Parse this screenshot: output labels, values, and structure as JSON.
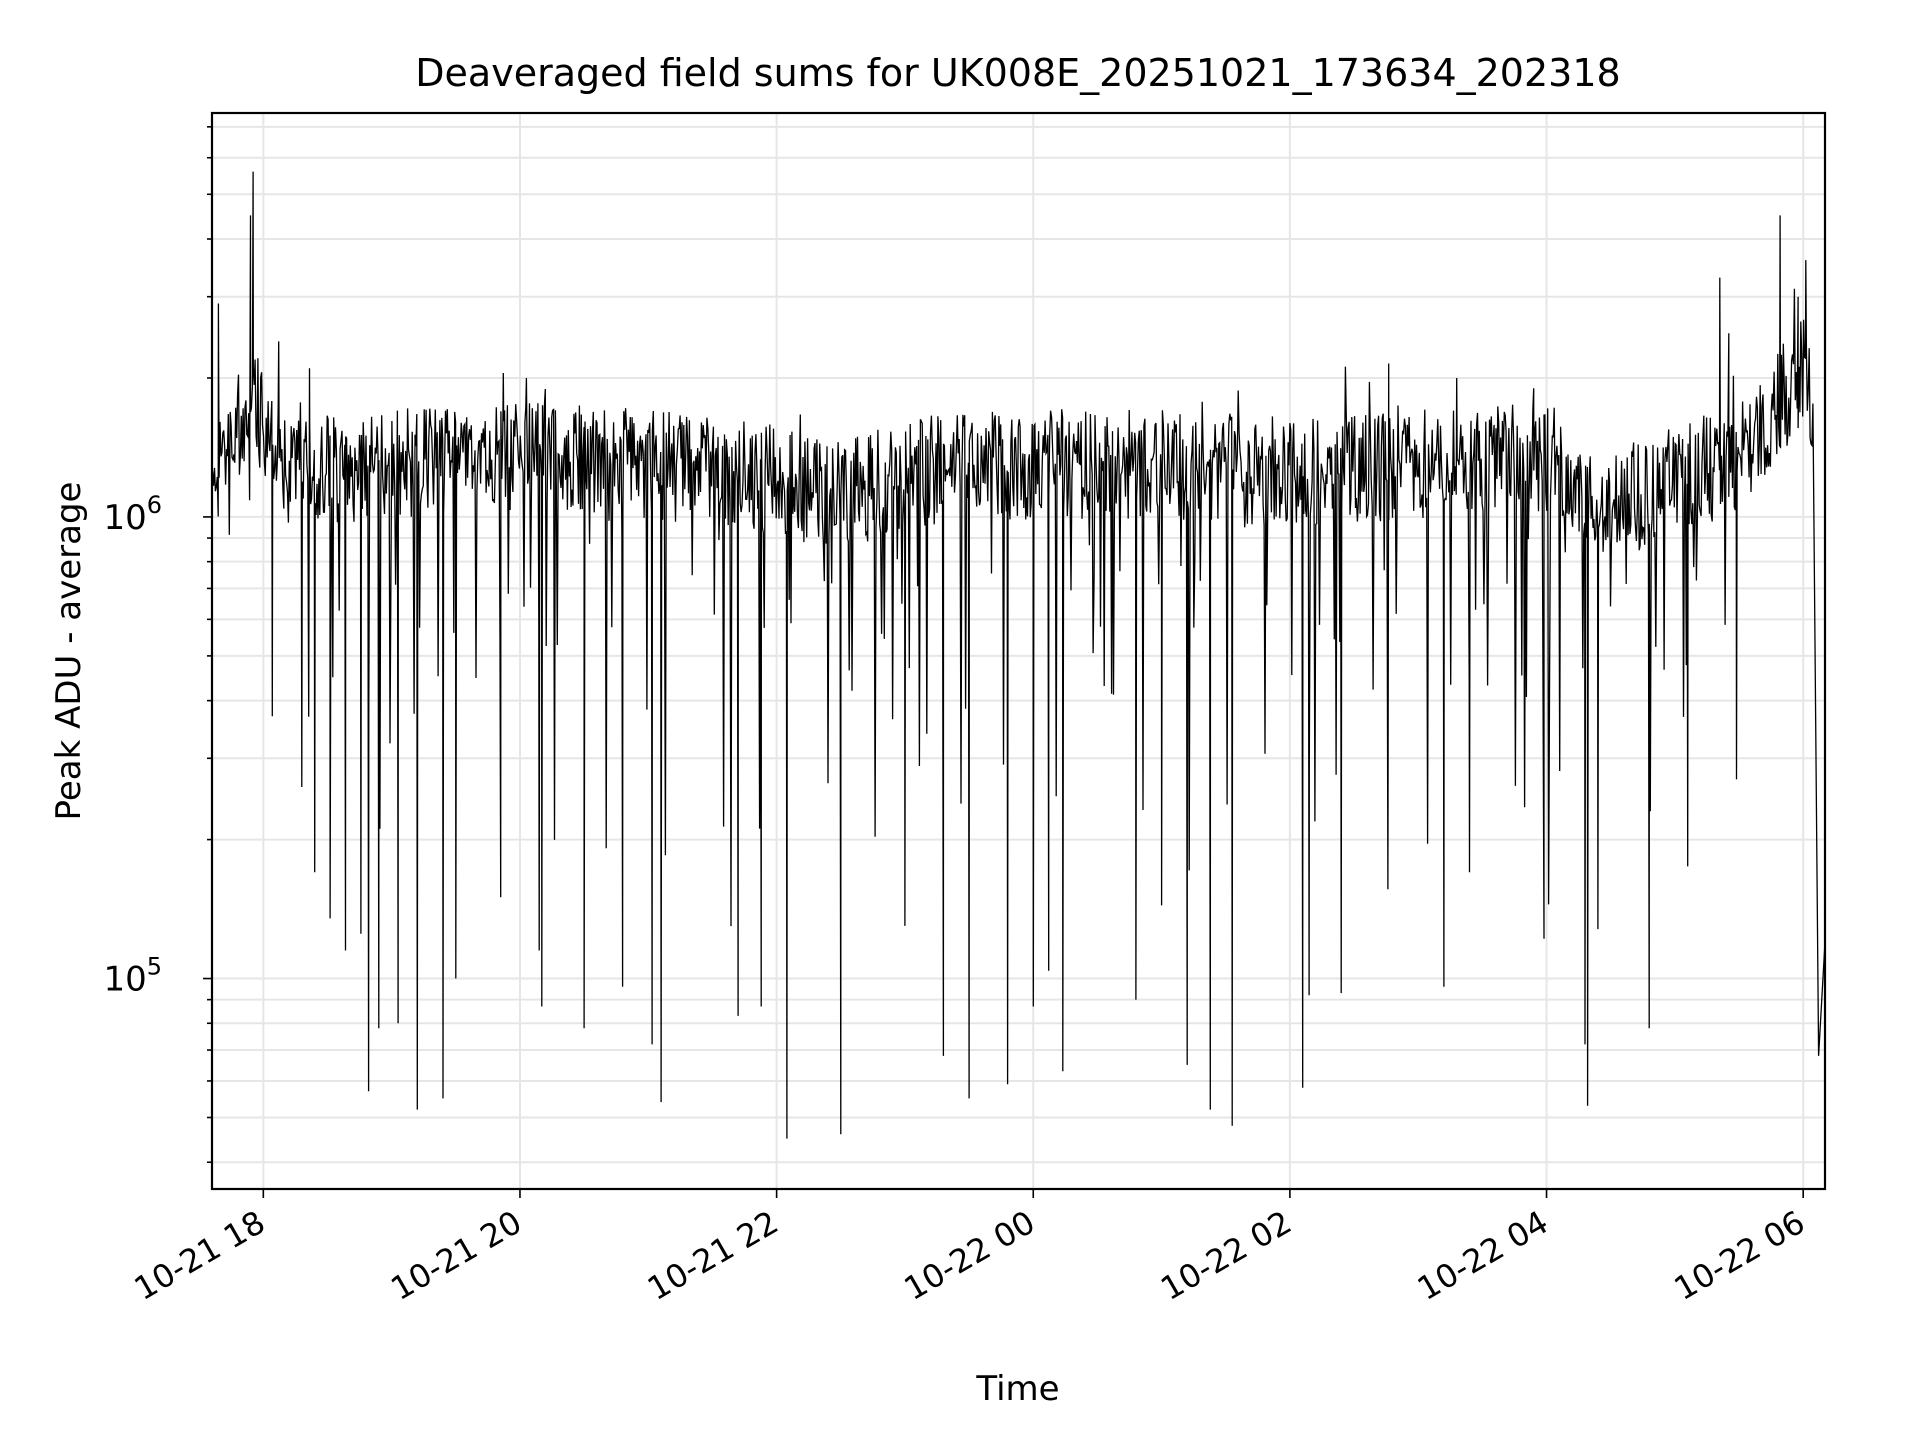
{
  "chart_data": {
    "type": "line",
    "title": "Deaveraged field sums for UK008E_20251021_173634_202318",
    "xlabel": "Time",
    "ylabel": "Peak ADU - average",
    "yscale": "log",
    "ylim": [
      35000,
      7500000
    ],
    "xlim_hours": [
      -0.4,
      12.17
    ],
    "grid": true,
    "line_color": "#000000",
    "grid_color": "#e6e6e6",
    "x_ticks": [
      {
        "label": "10-21 18",
        "hour": 0
      },
      {
        "label": "10-21 20",
        "hour": 2
      },
      {
        "label": "10-21 22",
        "hour": 4
      },
      {
        "label": "10-22 00",
        "hour": 6
      },
      {
        "label": "10-22 02",
        "hour": 8
      },
      {
        "label": "10-22 04",
        "hour": 10
      },
      {
        "label": "10-22 06",
        "hour": 12
      }
    ],
    "y_ticks": [
      {
        "base": "10",
        "exp": "5",
        "value": 100000
      },
      {
        "base": "10",
        "exp": "6",
        "value": 1000000
      }
    ],
    "series_note": "hours relative to 10-21 18:00",
    "baseline": [
      [
        -0.4,
        1200000
      ],
      [
        -0.1,
        1800000
      ],
      [
        0.2,
        1250000
      ],
      [
        1.0,
        1300000
      ],
      [
        2.0,
        1350000
      ],
      [
        3.0,
        1300000
      ],
      [
        4.0,
        1200000
      ],
      [
        4.5,
        1100000
      ],
      [
        5.0,
        1250000
      ],
      [
        6.0,
        1300000
      ],
      [
        7.0,
        1300000
      ],
      [
        8.0,
        1250000
      ],
      [
        9.0,
        1300000
      ],
      [
        10.0,
        1350000
      ],
      [
        10.5,
        1050000
      ],
      [
        11.0,
        1200000
      ],
      [
        11.5,
        1350000
      ],
      [
        11.9,
        1900000
      ],
      [
        12.0,
        2100000
      ],
      [
        12.08,
        1800000
      ]
    ],
    "peaks": [
      {
        "hour": -0.35,
        "value": 2900000
      },
      {
        "hour": -0.1,
        "value": 4500000
      },
      {
        "hour": -0.08,
        "value": 5600000
      },
      {
        "hour": 0.12,
        "value": 2400000
      },
      {
        "hour": 0.36,
        "value": 2100000
      },
      {
        "hour": 1.87,
        "value": 2050000
      },
      {
        "hour": 2.05,
        "value": 2000000
      },
      {
        "hour": 8.77,
        "value": 2150000
      },
      {
        "hour": 9.3,
        "value": 2000000
      },
      {
        "hour": 9.9,
        "value": 1900000
      },
      {
        "hour": 11.35,
        "value": 3300000
      },
      {
        "hour": 11.42,
        "value": 2500000
      },
      {
        "hour": 11.82,
        "value": 4500000
      },
      {
        "hour": 11.96,
        "value": 3000000
      },
      {
        "hour": 12.02,
        "value": 3600000
      }
    ],
    "dips": [
      {
        "hour": 0.07,
        "value": 370000
      },
      {
        "hour": 0.3,
        "value": 260000
      },
      {
        "hour": 0.4,
        "value": 170000
      },
      {
        "hour": 0.52,
        "value": 135000
      },
      {
        "hour": 0.64,
        "value": 115000
      },
      {
        "hour": 0.76,
        "value": 125000
      },
      {
        "hour": 0.82,
        "value": 57000
      },
      {
        "hour": 0.9,
        "value": 78000
      },
      {
        "hour": 1.05,
        "value": 80000
      },
      {
        "hour": 1.2,
        "value": 52000
      },
      {
        "hour": 1.4,
        "value": 55000
      },
      {
        "hour": 1.5,
        "value": 100000
      },
      {
        "hour": 1.85,
        "value": 150000
      },
      {
        "hour": 2.15,
        "value": 115000
      },
      {
        "hour": 2.17,
        "value": 87000
      },
      {
        "hour": 2.5,
        "value": 78000
      },
      {
        "hour": 2.8,
        "value": 96000
      },
      {
        "hour": 3.03,
        "value": 72000
      },
      {
        "hour": 3.1,
        "value": 54000
      },
      {
        "hour": 3.7,
        "value": 83000
      },
      {
        "hour": 3.88,
        "value": 87000
      },
      {
        "hour": 4.08,
        "value": 45000
      },
      {
        "hour": 4.5,
        "value": 46000
      },
      {
        "hour": 5.0,
        "value": 130000
      },
      {
        "hour": 5.3,
        "value": 68000
      },
      {
        "hour": 5.5,
        "value": 55000
      },
      {
        "hour": 5.8,
        "value": 59000
      },
      {
        "hour": 6.0,
        "value": 87000
      },
      {
        "hour": 6.12,
        "value": 104000
      },
      {
        "hour": 6.23,
        "value": 63000
      },
      {
        "hour": 6.8,
        "value": 90000
      },
      {
        "hour": 7.0,
        "value": 144000
      },
      {
        "hour": 7.2,
        "value": 65000
      },
      {
        "hour": 7.38,
        "value": 52000
      },
      {
        "hour": 7.55,
        "value": 48000
      },
      {
        "hour": 8.1,
        "value": 58000
      },
      {
        "hour": 8.15,
        "value": 92000
      },
      {
        "hour": 8.4,
        "value": 93000
      },
      {
        "hour": 9.2,
        "value": 96000
      },
      {
        "hour": 9.4,
        "value": 170000
      },
      {
        "hour": 9.98,
        "value": 122000
      },
      {
        "hour": 10.3,
        "value": 72000
      },
      {
        "hour": 10.32,
        "value": 53000
      },
      {
        "hour": 10.4,
        "value": 128000
      },
      {
        "hour": 10.8,
        "value": 78000
      },
      {
        "hour": 11.1,
        "value": 175000
      },
      {
        "hour": 11.48,
        "value": 270000
      },
      {
        "hour": 12.12,
        "value": 68000
      },
      {
        "hour": 12.17,
        "value": 120000
      }
    ]
  }
}
